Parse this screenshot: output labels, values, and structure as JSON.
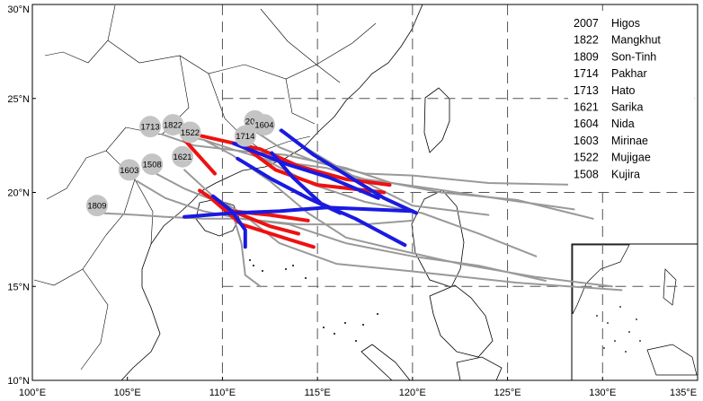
{
  "map": {
    "x_ticks": [
      "100°E",
      "105°E",
      "110°E",
      "115°E",
      "120°E",
      "125°E",
      "130°E",
      "135°E"
    ],
    "y_ticks": [
      "10°N",
      "15°N",
      "20°N",
      "25°N",
      "30°N"
    ],
    "lon_range": [
      100,
      135
    ],
    "lat_range": [
      10,
      30
    ],
    "grid_style": "dashed",
    "colors": {
      "track": "#999999",
      "landfall_red": "#ee1111",
      "landfall_blue": "#1a1ae0",
      "marker": "#c4c4c4"
    }
  },
  "legend": {
    "items": [
      {
        "code": "2007",
        "name": "Higos"
      },
      {
        "code": "1822",
        "name": "Mangkhut"
      },
      {
        "code": "1809",
        "name": "Son-Tinh"
      },
      {
        "code": "1714",
        "name": "Pakhar"
      },
      {
        "code": "1713",
        "name": "Hato"
      },
      {
        "code": "1621",
        "name": "Sarika"
      },
      {
        "code": "1604",
        "name": "Nida"
      },
      {
        "code": "1603",
        "name": "Mirinae"
      },
      {
        "code": "1522",
        "name": "Mujigae"
      },
      {
        "code": "1508",
        "name": "Kujira"
      }
    ]
  },
  "markers": [
    {
      "label": "2007",
      "lon": 111.7,
      "lat": 23.8
    },
    {
      "label": "1604",
      "lon": 112.2,
      "lat": 23.6
    },
    {
      "label": "1713",
      "lon": 106.2,
      "lat": 23.5
    },
    {
      "label": "1822",
      "lon": 107.4,
      "lat": 23.6
    },
    {
      "label": "1522",
      "lon": 108.3,
      "lat": 23.2
    },
    {
      "label": "1714",
      "lon": 111.2,
      "lat": 23.0
    },
    {
      "label": "1621",
      "lon": 107.9,
      "lat": 21.9
    },
    {
      "label": "1508",
      "lon": 106.3,
      "lat": 21.5
    },
    {
      "label": "1603",
      "lon": 105.1,
      "lat": 21.2
    },
    {
      "label": "1809",
      "lon": 103.4,
      "lat": 19.3
    }
  ],
  "tracks": [
    {
      "label": "2007",
      "points": [
        [
          111.8,
          23.2
        ],
        [
          113.0,
          22.4
        ],
        [
          115.0,
          21.6
        ],
        [
          117.5,
          21.0
        ],
        [
          120.0,
          20.9
        ],
        [
          124.0,
          20.5
        ],
        [
          129.0,
          20.4
        ]
      ]
    },
    {
      "label": "1604",
      "points": [
        [
          113.0,
          23.3
        ],
        [
          114.5,
          22.3
        ],
        [
          117.0,
          20.8
        ],
        [
          120.0,
          19.3
        ],
        [
          124.0,
          18.8
        ]
      ]
    },
    {
      "label": "1713",
      "points": [
        [
          106.8,
          23.1
        ],
        [
          108.5,
          22.5
        ],
        [
          111.0,
          22.2
        ],
        [
          113.3,
          22.0
        ],
        [
          116.5,
          21.3
        ],
        [
          118.9,
          20.5
        ],
        [
          121.5,
          20.0
        ],
        [
          125.5,
          19.6
        ],
        [
          129.5,
          18.6
        ]
      ]
    },
    {
      "label": "1822",
      "points": [
        [
          108.0,
          23.0
        ],
        [
          109.0,
          22.8
        ],
        [
          110.5,
          22.3
        ],
        [
          112.5,
          21.7
        ],
        [
          115.5,
          21.3
        ],
        [
          117.5,
          20.7
        ],
        [
          121.0,
          20.2
        ],
        [
          125.0,
          19.6
        ],
        [
          128.5,
          19.1
        ]
      ]
    },
    {
      "label": "1522",
      "points": [
        [
          109.0,
          22.8
        ],
        [
          110.5,
          22.0
        ],
        [
          112.5,
          20.6
        ],
        [
          114.5,
          18.9
        ],
        [
          116.5,
          17.6
        ],
        [
          119.0,
          17.0
        ],
        [
          122.5,
          16.2
        ],
        [
          126.5,
          15.5
        ],
        [
          130.5,
          15.0
        ]
      ]
    },
    {
      "label": "1714",
      "points": [
        [
          111.0,
          22.4
        ],
        [
          112.5,
          21.6
        ],
        [
          114.8,
          20.4
        ],
        [
          117.5,
          19.5
        ],
        [
          120.5,
          18.9
        ],
        [
          123.5,
          17.8
        ],
        [
          126.5,
          16.6
        ]
      ]
    },
    {
      "label": "1621",
      "points": [
        [
          108.0,
          21.2
        ],
        [
          109.5,
          19.8
        ],
        [
          111.0,
          18.9
        ],
        [
          113.0,
          17.3
        ],
        [
          116.0,
          16.2
        ],
        [
          120.0,
          15.8
        ],
        [
          125.5,
          15.2
        ],
        [
          131.0,
          14.8
        ]
      ]
    },
    {
      "label": "1508",
      "points": [
        [
          106.5,
          21.0
        ],
        [
          108.0,
          20.2
        ],
        [
          109.5,
          19.6
        ],
        [
          110.5,
          19.0
        ],
        [
          111.0,
          17.3
        ],
        [
          111.2,
          15.6
        ],
        [
          112.0,
          15.0
        ]
      ]
    },
    {
      "label": "1603",
      "points": [
        [
          105.5,
          20.6
        ],
        [
          107.0,
          19.7
        ],
        [
          109.0,
          19.0
        ],
        [
          111.0,
          18.6
        ],
        [
          114.0,
          18.3
        ],
        [
          117.5,
          18.3
        ],
        [
          120.0,
          18.5
        ]
      ]
    },
    {
      "label": "1809",
      "points": [
        [
          103.6,
          18.9
        ],
        [
          105.5,
          18.8
        ],
        [
          107.0,
          18.7
        ],
        [
          109.0,
          18.6
        ],
        [
          111.0,
          18.6
        ],
        [
          113.5,
          18.3
        ],
        [
          116.5,
          17.3
        ],
        [
          120.0,
          16.6
        ],
        [
          123.5,
          16.1
        ],
        [
          127.0,
          15.3
        ]
      ]
    }
  ],
  "landfall_segments": {
    "red": [
      [
        [
          108.0,
          22.8
        ],
        [
          109.6,
          21.0
        ]
      ],
      [
        [
          108.9,
          23.0
        ],
        [
          112.0,
          22.3
        ],
        [
          114.0,
          21.4
        ],
        [
          116.5,
          20.7
        ],
        [
          118.8,
          20.4
        ]
      ],
      [
        [
          111.2,
          22.4
        ],
        [
          112.8,
          21.2
        ],
        [
          115.0,
          20.4
        ],
        [
          118.5,
          20.0
        ]
      ],
      [
        [
          109.5,
          19.6
        ],
        [
          111.0,
          18.3
        ],
        [
          113.5,
          17.5
        ],
        [
          114.8,
          17.1
        ]
      ],
      [
        [
          108.8,
          20.1
        ],
        [
          110.3,
          19.1
        ],
        [
          112.5,
          18.2
        ],
        [
          114.0,
          17.8
        ]
      ],
      [
        [
          110.5,
          19.0
        ],
        [
          112.5,
          18.8
        ],
        [
          114.5,
          18.5
        ]
      ]
    ],
    "blue": [
      [
        [
          113.1,
          23.3
        ],
        [
          114.8,
          22.0
        ],
        [
          118.5,
          19.7
        ],
        [
          120.2,
          18.9
        ]
      ],
      [
        [
          110.6,
          22.6
        ],
        [
          113.4,
          21.5
        ],
        [
          115.6,
          20.8
        ],
        [
          118.2,
          19.7
        ]
      ],
      [
        [
          112.6,
          22.1
        ],
        [
          113.7,
          20.8
        ],
        [
          115.2,
          19.4
        ],
        [
          117.0,
          18.6
        ],
        [
          119.6,
          17.2
        ]
      ],
      [
        [
          110.8,
          21.8
        ],
        [
          112.6,
          20.7
        ],
        [
          114.5,
          19.7
        ],
        [
          116.2,
          18.9
        ]
      ],
      [
        [
          109.5,
          19.8
        ],
        [
          110.5,
          19.0
        ],
        [
          111.2,
          18.0
        ],
        [
          111.2,
          17.1
        ]
      ],
      [
        [
          108.0,
          18.7
        ],
        [
          110.5,
          18.9
        ],
        [
          113.0,
          19.0
        ],
        [
          115.5,
          19.2
        ],
        [
          120.0,
          19.0
        ]
      ]
    ]
  }
}
